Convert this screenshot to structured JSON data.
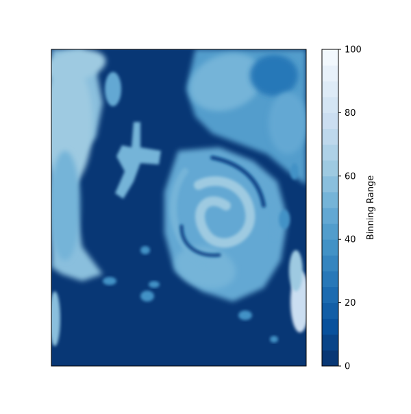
{
  "chart_data": {
    "type": "heatmap",
    "title": "",
    "xlabel": "",
    "ylabel": "",
    "xticks": [],
    "yticks": [],
    "colorbar": {
      "label": "Binning Range",
      "min": 0,
      "max": 100,
      "bins": 20,
      "ticks": [
        "0",
        "20",
        "40",
        "60",
        "80",
        "100"
      ],
      "colormap": "Blues_r",
      "color_low": "#08306b",
      "color_high": "#f7fbff"
    },
    "field": {
      "background": 2,
      "features": [
        {
          "kind": "left-cloud-band",
          "value": 58
        },
        {
          "kind": "top-left-cloud",
          "value": 62
        },
        {
          "kind": "cross-shaped-cloud",
          "value": 52
        },
        {
          "kind": "top-right-cloud-mass",
          "value": 40
        },
        {
          "kind": "spiral-storm-outer",
          "value": 45
        },
        {
          "kind": "spiral-storm-eye-wall",
          "value": 60
        },
        {
          "kind": "right-edge-bright-cloud",
          "value": 75
        },
        {
          "kind": "bottom-left-bright-patch",
          "value": 55
        },
        {
          "kind": "scattered-small-clouds",
          "value": 35
        }
      ]
    }
  }
}
